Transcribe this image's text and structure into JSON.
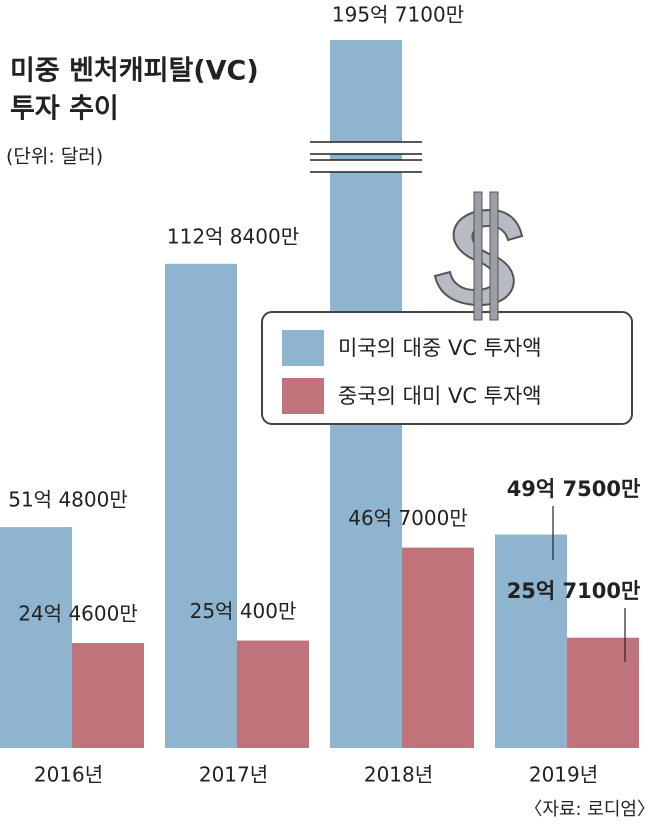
{
  "chart_data": {
    "type": "bar",
    "title": [
      "미중 벤처캐피탈(VC)",
      "투자 추이"
    ],
    "subtitle": "(단위: 달러)",
    "source": "〈자료: 로디엄〉",
    "categories": [
      "2016년",
      "2017년",
      "2018년",
      "2019년"
    ],
    "ylim": [
      0,
      165
    ],
    "axis_break": true,
    "series": [
      {
        "name": "미국의 대중 VC 투자액",
        "color": "#8fb4cf",
        "values": [
          51.48,
          112.84,
          195.71,
          49.75
        ],
        "value_labels": [
          "51억 4800만",
          "112억 8400만",
          "195억 7100만",
          "49억 7500만"
        ]
      },
      {
        "name": "중국의 대미 VC 투자액",
        "color": "#c0737a",
        "values": [
          24.46,
          25.04,
          46.7,
          25.71
        ],
        "value_labels": [
          "24억 4600만",
          "25억 400만",
          "46억 7000만",
          "25억 7100만"
        ]
      }
    ]
  }
}
